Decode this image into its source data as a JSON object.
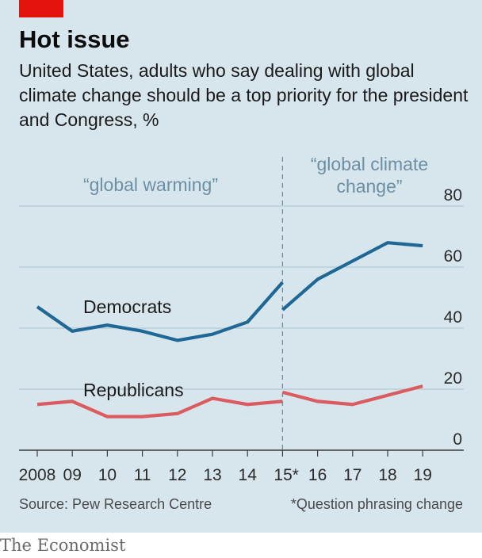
{
  "title": "Hot issue",
  "subtitle": "United States, adults who say dealing with global climate change should be a top priority for the president and Congress, %",
  "source": "Source: Pew Research Centre",
  "note": "*Question phrasing change",
  "brand": "The Economist",
  "colors": {
    "background": "#d7e6ed",
    "democrats": "#1f6896",
    "republicans": "#db5c60",
    "grid": "#a9c1cd",
    "accent_tag": "#e3120b",
    "annotation": "#6d8fa3"
  },
  "chart_data": {
    "type": "line",
    "title": "Hot issue",
    "xlabel": "",
    "ylabel": "",
    "ylim": [
      0,
      80
    ],
    "yticks": [
      0,
      20,
      40,
      60,
      80
    ],
    "grid": true,
    "x_tick_labels": [
      "2008",
      "09",
      "10",
      "11",
      "12",
      "13",
      "14",
      "15*",
      "16",
      "17",
      "18",
      "19"
    ],
    "annotations": [
      {
        "text": "“global warming”"
      },
      {
        "text": "“global climate change”"
      }
    ],
    "break_year": "15*",
    "series": [
      {
        "name": "Democrats",
        "segments": [
          {
            "x": [
              "2008",
              "09",
              "10",
              "11",
              "12",
              "13",
              "14",
              "15*"
            ],
            "values": [
              47,
              39,
              41,
              39,
              36,
              38,
              42,
              55
            ]
          },
          {
            "x": [
              "15*",
              "16",
              "17",
              "18",
              "19"
            ],
            "values": [
              46,
              56,
              62,
              68,
              67
            ]
          }
        ]
      },
      {
        "name": "Republicans",
        "segments": [
          {
            "x": [
              "2008",
              "09",
              "10",
              "11",
              "12",
              "13",
              "14",
              "15*"
            ],
            "values": [
              15,
              16,
              11,
              11,
              12,
              17,
              15,
              16
            ]
          },
          {
            "x": [
              "15*",
              "16",
              "17",
              "18",
              "19"
            ],
            "values": [
              19,
              16,
              15,
              18,
              21
            ]
          }
        ]
      }
    ]
  }
}
